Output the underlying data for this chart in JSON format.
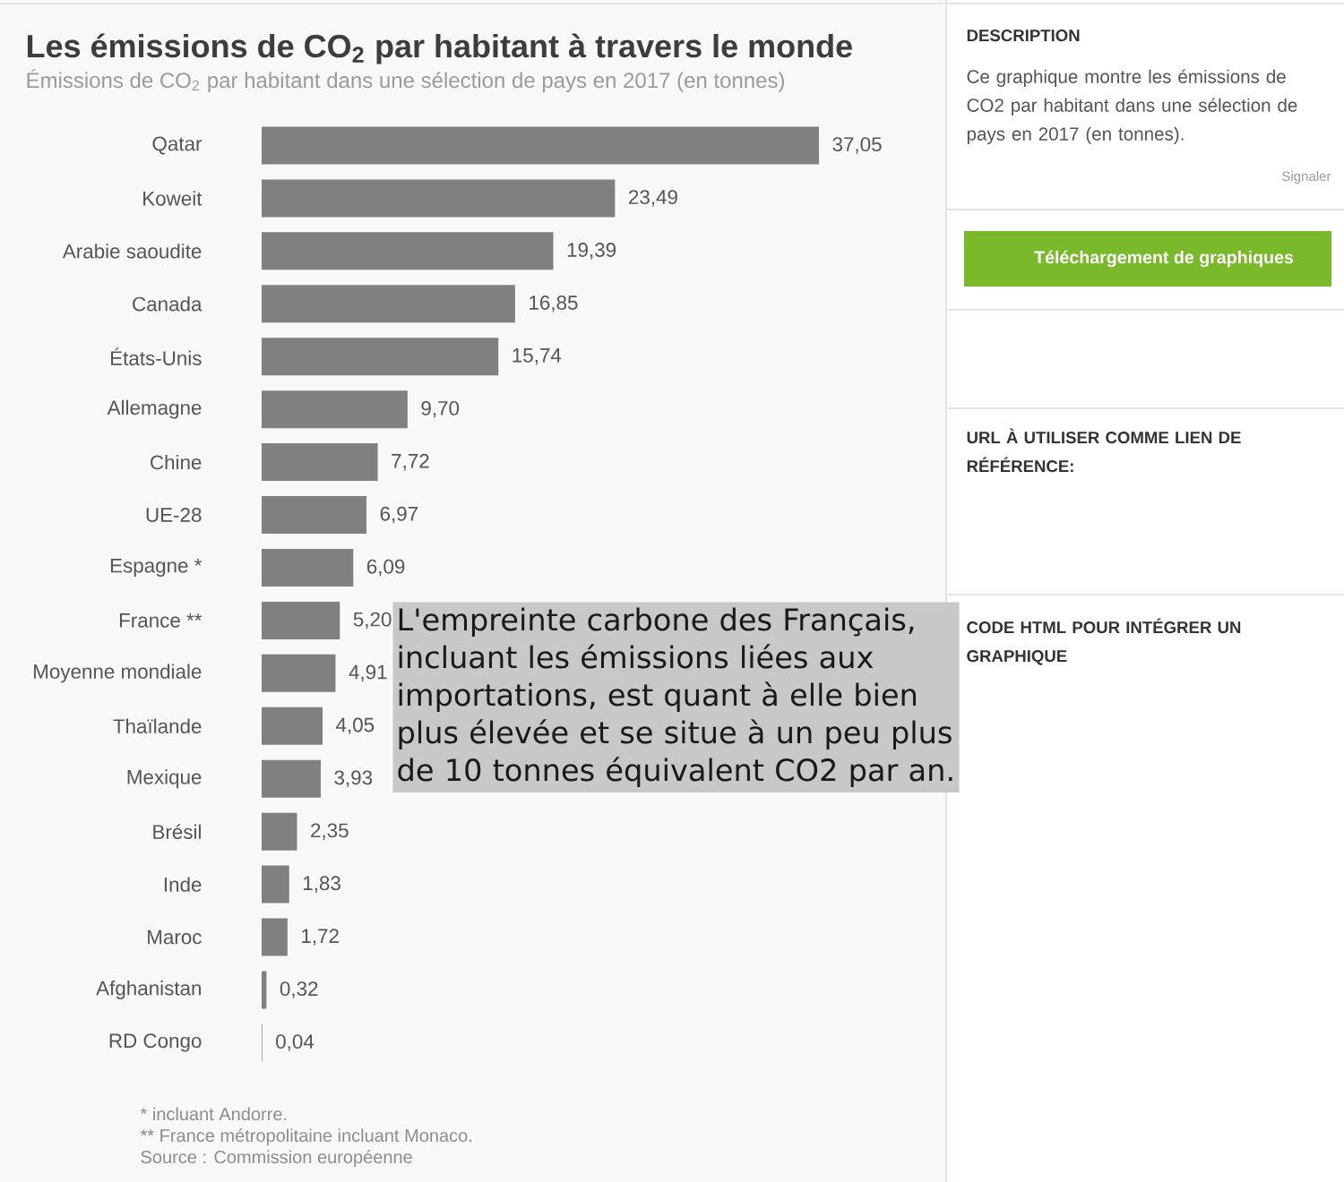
{
  "chart_data": [
    {
      "type": "bar",
      "orientation": "horizontal",
      "title": "Les émissions de CO$_{2}$ par habitant à travers le monde",
      "subtitle": "Émissions de CO$_{2}$ par habitant dans une sélection de pays en 2017 (en tonnes)",
      "categories": [
        "Qatar",
        "Koweit",
        "Arabie saoudite",
        "Canada",
        "États-Unis",
        "Allemagne",
        "Chine",
        "UE-28",
        "Espagne *",
        "France **",
        "Moyenne mondiale",
        "Thaïlande",
        "Mexique",
        "Brésil",
        "Inde",
        "Maroc",
        "Afghanistan",
        "RD Congo"
      ],
      "values": [
        37.05,
        23.49,
        19.39,
        16.85,
        15.74,
        9.7,
        7.72,
        6.97,
        6.09,
        5.2,
        4.91,
        4.05,
        3.93,
        2.35,
        1.83,
        1.72,
        0.32,
        0.04
      ],
      "value_labels": [
        "37,05",
        "23,49",
        "19,39",
        "16,85",
        "15,74",
        "9,70",
        "7,72",
        "6,97",
        "6,09",
        "5,20",
        "4,91",
        "4,05",
        "3,93",
        "2,35",
        "1,83",
        "1,72",
        "0,32",
        "0,04"
      ],
      "color": "#808080",
      "annotations": [
        "L'empreinte carbone des Français, incluant les émissions liées aux importations, est quant à elle bien plus élevée et se situe à un peu plus de 10 tonnes équivalent CO2 par an.",
        "* incluant Andorre.",
        "** France métropolitaine incluant Monaco.",
        "Source : Commission européenne"
      ]
    },
    {
      "type": "other",
      "title": "DESCRIPTION",
      "annotations": [
        "Ce graphique montre les émissions de CO2 par habitant dans une sélection de pays en 2017 (en tonnes).",
        "Signaler",
        "Téléchargement de graphiques",
        "URL À UTILISER COMME LIEN DE RÉFÉRENCE:",
        "CODE HTML POUR INTÉGRER UN GRAPHIQUE"
      ]
    }
  ]
}
